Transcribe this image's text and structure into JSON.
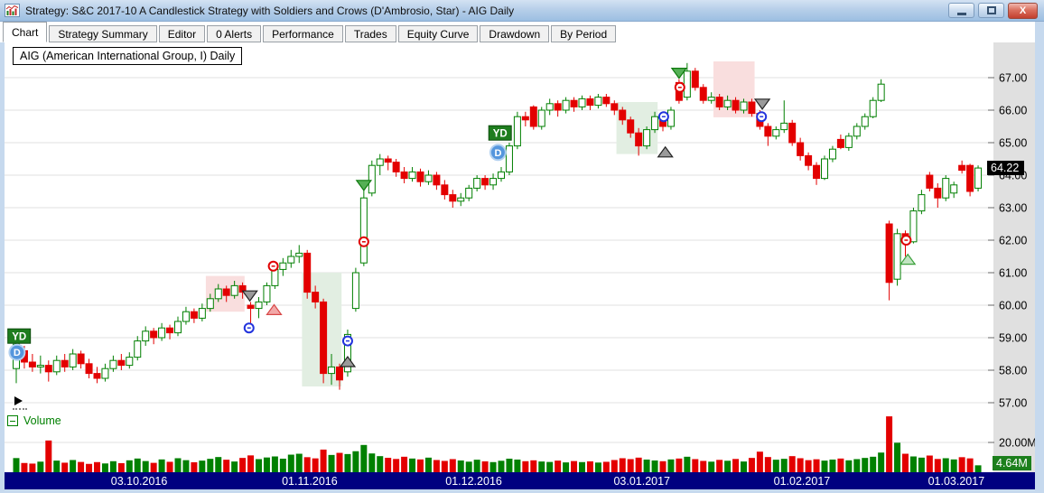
{
  "window": {
    "title": "Strategy: S&C 2017-10 A Candlestick Strategy with Soldiers and Crows (D'Ambrosio, Star) - AIG Daily",
    "app_icon": "chart-icon",
    "controls": [
      "minimize",
      "maximize",
      "close"
    ]
  },
  "tabs": [
    {
      "label": "Chart",
      "active": true
    },
    {
      "label": "Strategy Summary",
      "active": false
    },
    {
      "label": "Editor",
      "active": false
    },
    {
      "label": "0 Alerts",
      "active": false
    },
    {
      "label": "Performance",
      "active": false
    },
    {
      "label": "Trades",
      "active": false
    },
    {
      "label": "Equity Curve",
      "active": false
    },
    {
      "label": "Drawdown",
      "active": false
    },
    {
      "label": "By Period",
      "active": false
    }
  ],
  "chart": {
    "symbol_label": "AIG (American International Group, I) Daily",
    "volume_pane_label": "Volume",
    "last_price_label": "64.22",
    "last_volume_label": "4.64M",
    "volume_tick_label": "20.00M"
  },
  "chart_data": {
    "type": "candlestick",
    "symbol": "AIG",
    "timeframe": "Daily",
    "title": "AIG (American International Group, I) Daily",
    "price_axis": {
      "visible_min": 56.75,
      "visible_max": 68.1,
      "ticks": [
        67,
        66,
        65,
        64,
        63,
        62,
        61,
        60,
        59,
        58,
        57
      ],
      "last_price": 64.22
    },
    "volume_axis": {
      "tick_value_m": 20,
      "tick_label": "20.00M",
      "last_volume_m": 4.64,
      "last_volume_label": "4.64M"
    },
    "x_axis": {
      "date_labels": [
        {
          "label": "03.10.2016",
          "index": 15.2
        },
        {
          "label": "01.11.2016",
          "index": 36.3
        },
        {
          "label": "01.12.2016",
          "index": 56.6
        },
        {
          "label": "03.01.2017",
          "index": 77.4
        },
        {
          "label": "01.02.2017",
          "index": 97.2
        },
        {
          "label": "01.03.2017",
          "index": 116.3
        }
      ]
    },
    "candles": [
      [
        58.05,
        59.05,
        57.6,
        58.8
      ],
      [
        58.6,
        58.75,
        58.05,
        58.25
      ],
      [
        58.25,
        58.5,
        57.95,
        58.1
      ],
      [
        58.1,
        58.45,
        57.9,
        58.15
      ],
      [
        58.15,
        58.3,
        57.65,
        57.95
      ],
      [
        57.95,
        58.45,
        57.85,
        58.3
      ],
      [
        58.3,
        58.5,
        57.95,
        58.1
      ],
      [
        58.1,
        58.65,
        58.0,
        58.5
      ],
      [
        58.5,
        58.6,
        58.05,
        58.2
      ],
      [
        58.2,
        58.35,
        57.75,
        57.9
      ],
      [
        57.9,
        58.1,
        57.6,
        57.75
      ],
      [
        57.75,
        58.2,
        57.65,
        58.05
      ],
      [
        58.05,
        58.45,
        57.95,
        58.3
      ],
      [
        58.3,
        58.5,
        58.0,
        58.15
      ],
      [
        58.15,
        58.55,
        58.05,
        58.4
      ],
      [
        58.4,
        59.05,
        58.3,
        58.9
      ],
      [
        58.9,
        59.35,
        58.75,
        59.2
      ],
      [
        59.2,
        59.3,
        58.8,
        59.0
      ],
      [
        59.0,
        59.45,
        58.9,
        59.3
      ],
      [
        59.3,
        59.4,
        58.95,
        59.15
      ],
      [
        59.15,
        59.65,
        59.05,
        59.5
      ],
      [
        59.5,
        59.95,
        59.4,
        59.8
      ],
      [
        59.8,
        59.9,
        59.45,
        59.6
      ],
      [
        59.6,
        60.05,
        59.5,
        59.9
      ],
      [
        59.9,
        60.35,
        59.8,
        60.2
      ],
      [
        60.2,
        60.65,
        60.1,
        60.5
      ],
      [
        60.5,
        60.6,
        60.1,
        60.3
      ],
      [
        60.3,
        60.75,
        60.2,
        60.6
      ],
      [
        60.6,
        60.7,
        60.2,
        60.4
      ],
      [
        60.0,
        60.1,
        59.25,
        59.9
      ],
      [
        59.9,
        60.25,
        59.6,
        60.1
      ],
      [
        60.1,
        60.7,
        60.0,
        60.6
      ],
      [
        60.6,
        61.3,
        60.5,
        61.1
      ],
      [
        61.1,
        61.45,
        60.9,
        61.3
      ],
      [
        61.3,
        61.7,
        61.15,
        61.5
      ],
      [
        61.5,
        61.85,
        61.3,
        61.6
      ],
      [
        61.6,
        61.7,
        60.2,
        60.4
      ],
      [
        60.4,
        60.6,
        59.9,
        60.1
      ],
      [
        60.1,
        60.2,
        57.6,
        57.9
      ],
      [
        57.9,
        58.5,
        57.55,
        58.1
      ],
      [
        58.1,
        58.2,
        57.4,
        57.7
      ],
      [
        57.95,
        59.25,
        57.8,
        59.1
      ],
      [
        59.9,
        61.15,
        59.8,
        61.0
      ],
      [
        61.3,
        63.55,
        61.2,
        63.3
      ],
      [
        63.45,
        64.45,
        63.35,
        64.3
      ],
      [
        64.3,
        64.65,
        64.0,
        64.5
      ],
      [
        64.5,
        64.6,
        64.15,
        64.4
      ],
      [
        64.4,
        64.5,
        63.95,
        64.1
      ],
      [
        64.1,
        64.25,
        63.75,
        63.9
      ],
      [
        63.9,
        64.25,
        63.8,
        64.1
      ],
      [
        64.1,
        64.2,
        63.65,
        63.8
      ],
      [
        63.8,
        64.15,
        63.7,
        64.0
      ],
      [
        64.0,
        64.1,
        63.55,
        63.7
      ],
      [
        63.7,
        63.85,
        63.25,
        63.4
      ],
      [
        63.4,
        63.55,
        63.0,
        63.2
      ],
      [
        63.2,
        63.45,
        63.05,
        63.3
      ],
      [
        63.3,
        63.7,
        63.2,
        63.6
      ],
      [
        63.6,
        64.0,
        63.5,
        63.9
      ],
      [
        63.9,
        64.0,
        63.55,
        63.7
      ],
      [
        63.7,
        64.05,
        63.55,
        63.9
      ],
      [
        63.9,
        64.25,
        63.8,
        64.1
      ],
      [
        64.1,
        65.0,
        64.0,
        64.9
      ],
      [
        64.9,
        65.95,
        64.8,
        65.8
      ],
      [
        65.8,
        65.95,
        65.5,
        65.7
      ],
      [
        66.1,
        66.15,
        65.4,
        65.5
      ],
      [
        65.5,
        66.1,
        65.4,
        66.0
      ],
      [
        66.0,
        66.35,
        65.85,
        66.2
      ],
      [
        66.2,
        66.3,
        65.8,
        66.0
      ],
      [
        66.0,
        66.4,
        65.9,
        66.3
      ],
      [
        66.3,
        66.4,
        65.95,
        66.1
      ],
      [
        66.1,
        66.45,
        66.0,
        66.35
      ],
      [
        66.35,
        66.45,
        66.0,
        66.15
      ],
      [
        66.15,
        66.5,
        66.05,
        66.4
      ],
      [
        66.4,
        66.5,
        66.1,
        66.2
      ],
      [
        66.2,
        66.3,
        65.85,
        66.0
      ],
      [
        66.0,
        66.1,
        65.55,
        65.7
      ],
      [
        65.7,
        65.8,
        65.15,
        65.3
      ],
      [
        65.3,
        65.45,
        64.6,
        64.9
      ],
      [
        64.9,
        65.5,
        64.8,
        65.4
      ],
      [
        65.4,
        65.95,
        65.3,
        65.8
      ],
      [
        65.8,
        65.9,
        65.35,
        65.5
      ],
      [
        65.5,
        66.1,
        65.4,
        66.0
      ],
      [
        66.85,
        66.95,
        66.2,
        66.3
      ],
      [
        66.4,
        67.45,
        66.3,
        67.2
      ],
      [
        67.2,
        67.3,
        66.6,
        66.7
      ],
      [
        66.7,
        66.8,
        66.2,
        66.3
      ],
      [
        66.3,
        66.55,
        66.2,
        66.4
      ],
      [
        66.4,
        66.5,
        66.0,
        66.1
      ],
      [
        66.1,
        66.45,
        66.0,
        66.3
      ],
      [
        66.3,
        66.4,
        65.9,
        66.0
      ],
      [
        66.0,
        66.35,
        65.9,
        66.25
      ],
      [
        66.25,
        66.35,
        65.8,
        65.9
      ],
      [
        65.9,
        66.0,
        65.4,
        65.5
      ],
      [
        65.5,
        65.6,
        64.9,
        65.2
      ],
      [
        65.2,
        65.5,
        65.1,
        65.4
      ],
      [
        65.4,
        66.3,
        65.3,
        65.6
      ],
      [
        65.6,
        65.7,
        64.9,
        65.0
      ],
      [
        65.0,
        65.15,
        64.45,
        64.6
      ],
      [
        64.6,
        64.7,
        64.15,
        64.3
      ],
      [
        64.3,
        64.4,
        63.7,
        63.9
      ],
      [
        63.9,
        64.6,
        63.85,
        64.5
      ],
      [
        64.5,
        64.9,
        64.4,
        64.8
      ],
      [
        65.1,
        65.25,
        64.8,
        64.85
      ],
      [
        64.85,
        65.3,
        64.75,
        65.2
      ],
      [
        65.2,
        65.6,
        65.1,
        65.5
      ],
      [
        65.5,
        65.9,
        65.4,
        65.8
      ],
      [
        65.8,
        66.4,
        65.75,
        66.3
      ],
      [
        66.3,
        66.95,
        66.25,
        66.8
      ],
      [
        62.5,
        62.6,
        60.15,
        60.7
      ],
      [
        60.8,
        62.35,
        60.6,
        62.2
      ],
      [
        62.2,
        62.3,
        61.5,
        61.95
      ],
      [
        61.95,
        63.0,
        61.9,
        62.9
      ],
      [
        62.9,
        63.55,
        62.8,
        63.4
      ],
      [
        64.0,
        64.1,
        63.5,
        63.6
      ],
      [
        63.6,
        63.75,
        63.0,
        63.3
      ],
      [
        63.3,
        64.0,
        63.2,
        63.9
      ],
      [
        63.45,
        63.8,
        63.3,
        63.7
      ],
      [
        64.3,
        64.45,
        64.05,
        64.15
      ],
      [
        64.3,
        64.35,
        63.35,
        63.5
      ],
      [
        63.6,
        64.3,
        63.5,
        64.22
      ]
    ],
    "volume_m": [
      9.5,
      6.2,
      5.8,
      7.1,
      21.3,
      7.8,
      6.4,
      8.2,
      6.9,
      5.6,
      6.8,
      5.9,
      7.4,
      6.1,
      8.0,
      9.2,
      7.5,
      6.3,
      8.6,
      7.0,
      9.4,
      8.1,
      6.7,
      7.8,
      9.0,
      10.2,
      8.4,
      7.2,
      9.6,
      11.3,
      8.8,
      9.9,
      10.6,
      9.1,
      11.8,
      12.4,
      10.1,
      9.3,
      15.2,
      11.6,
      13.0,
      12.2,
      14.1,
      18.3,
      12.6,
      10.8,
      9.7,
      8.9,
      10.4,
      9.2,
      8.6,
      9.8,
      8.2,
      7.6,
      8.8,
      7.9,
      7.1,
      8.4,
      7.3,
      6.8,
      7.7,
      9.1,
      8.5,
      7.4,
      8.0,
      7.2,
      6.9,
      7.8,
      6.6,
      7.5,
      6.8,
      7.3,
      6.5,
      7.0,
      8.2,
      9.4,
      8.8,
      9.8,
      8.5,
      7.9,
      7.4,
      8.6,
      9.2,
      10.4,
      8.8,
      7.6,
      7.1,
      8.3,
      7.7,
      8.9,
      7.2,
      9.6,
      13.8,
      10.2,
      8.4,
      9.0,
      10.8,
      9.4,
      8.1,
      8.7,
      7.8,
      8.5,
      9.2,
      8.0,
      8.8,
      9.6,
      10.4,
      13.2,
      37.5,
      19.8,
      12.4,
      10.6,
      9.8,
      11.2,
      8.9,
      9.4,
      8.6,
      10.1,
      9.3,
      4.64
    ],
    "regions": [
      {
        "i0": 23.9,
        "i1": 27.8,
        "p0": 59.8,
        "p1": 60.9,
        "color": "pink"
      },
      {
        "i0": 35.8,
        "i1": 39.8,
        "p0": 57.5,
        "p1": 61.0,
        "color": "green"
      },
      {
        "i0": 74.7,
        "i1": 78.9,
        "p0": 64.65,
        "p1": 66.25,
        "color": "green"
      },
      {
        "i0": 86.7,
        "i1": 90.9,
        "p0": 65.78,
        "p1": 67.5,
        "color": "pink"
      }
    ],
    "markers": [
      {
        "type": "badge",
        "label": "YD",
        "i": 0.3,
        "price": 59.05,
        "style": "yd"
      },
      {
        "type": "badge",
        "label": "D",
        "i": 0.1,
        "price": 58.55,
        "style": "d"
      },
      {
        "type": "triangle-down",
        "i": 28.9,
        "price": 60.3,
        "style": "gray"
      },
      {
        "type": "circle-cross",
        "i": 28.8,
        "price": 59.3,
        "style": "blue"
      },
      {
        "type": "circle-cross",
        "i": 31.8,
        "price": 61.2,
        "style": "red"
      },
      {
        "type": "triangle-up",
        "i": 31.9,
        "price": 59.85,
        "style": "pink"
      },
      {
        "type": "circle-cross",
        "i": 41.0,
        "price": 58.9,
        "style": "blue"
      },
      {
        "type": "triangle-up",
        "i": 41.0,
        "price": 58.25,
        "style": "gray"
      },
      {
        "type": "triangle-down",
        "i": 43.0,
        "price": 63.7,
        "style": "green"
      },
      {
        "type": "circle-cross",
        "i": 43.0,
        "price": 61.95,
        "style": "red"
      },
      {
        "type": "badge",
        "label": "YD",
        "i": 59.8,
        "price": 65.3,
        "style": "yd"
      },
      {
        "type": "badge",
        "label": "D",
        "i": 59.6,
        "price": 64.7,
        "style": "d"
      },
      {
        "type": "circle-cross",
        "i": 80.1,
        "price": 65.8,
        "style": "blue"
      },
      {
        "type": "triangle-up",
        "i": 80.3,
        "price": 64.7,
        "style": "gray"
      },
      {
        "type": "triangle-down",
        "i": 82.0,
        "price": 67.15,
        "style": "green"
      },
      {
        "type": "circle-cross",
        "i": 82.1,
        "price": 66.7,
        "style": "red"
      },
      {
        "type": "triangle-down",
        "i": 92.3,
        "price": 66.2,
        "style": "gray"
      },
      {
        "type": "circle-cross",
        "i": 92.2,
        "price": 65.8,
        "style": "blue"
      },
      {
        "type": "circle-cross",
        "i": 110.1,
        "price": 62.0,
        "style": "red"
      },
      {
        "type": "triangle-up",
        "i": 110.3,
        "price": 61.4,
        "style": "light-green"
      }
    ],
    "colors": {
      "up": "#007f00",
      "down": "#e30000",
      "volume_up": "#008000",
      "volume_down": "#e30000",
      "grid": "#e2e2e2",
      "date_bar": "#000080",
      "axis_bg": "#e0e0e0",
      "region_pink": "#f9dede",
      "region_green": "#e2eee2",
      "last_price_bg": "#000000",
      "last_volume_bg": "#1c7f1c"
    },
    "marker_styles": {
      "gray": {
        "fill": "#9a9a9a",
        "stroke": "#222222"
      },
      "green": {
        "fill": "#55b055",
        "stroke": "#0e7a0e"
      },
      "light-green": {
        "fill": "#c2e4c2",
        "stroke": "#3aa03a"
      },
      "pink": {
        "fill": "#f2a8a8",
        "stroke": "#d84848"
      },
      "red": {
        "fill": "#ffffff",
        "stroke": "#e00000"
      },
      "blue": {
        "fill": "#ffffff",
        "stroke": "#2233dd"
      },
      "yd": {
        "fill": "#1e7d1e",
        "stroke": "#0b4b0b",
        "text": "#ffffff"
      },
      "d": {
        "fill": "#5596dd",
        "stroke": "#b3d1f0",
        "text": "#ffffff"
      }
    }
  }
}
